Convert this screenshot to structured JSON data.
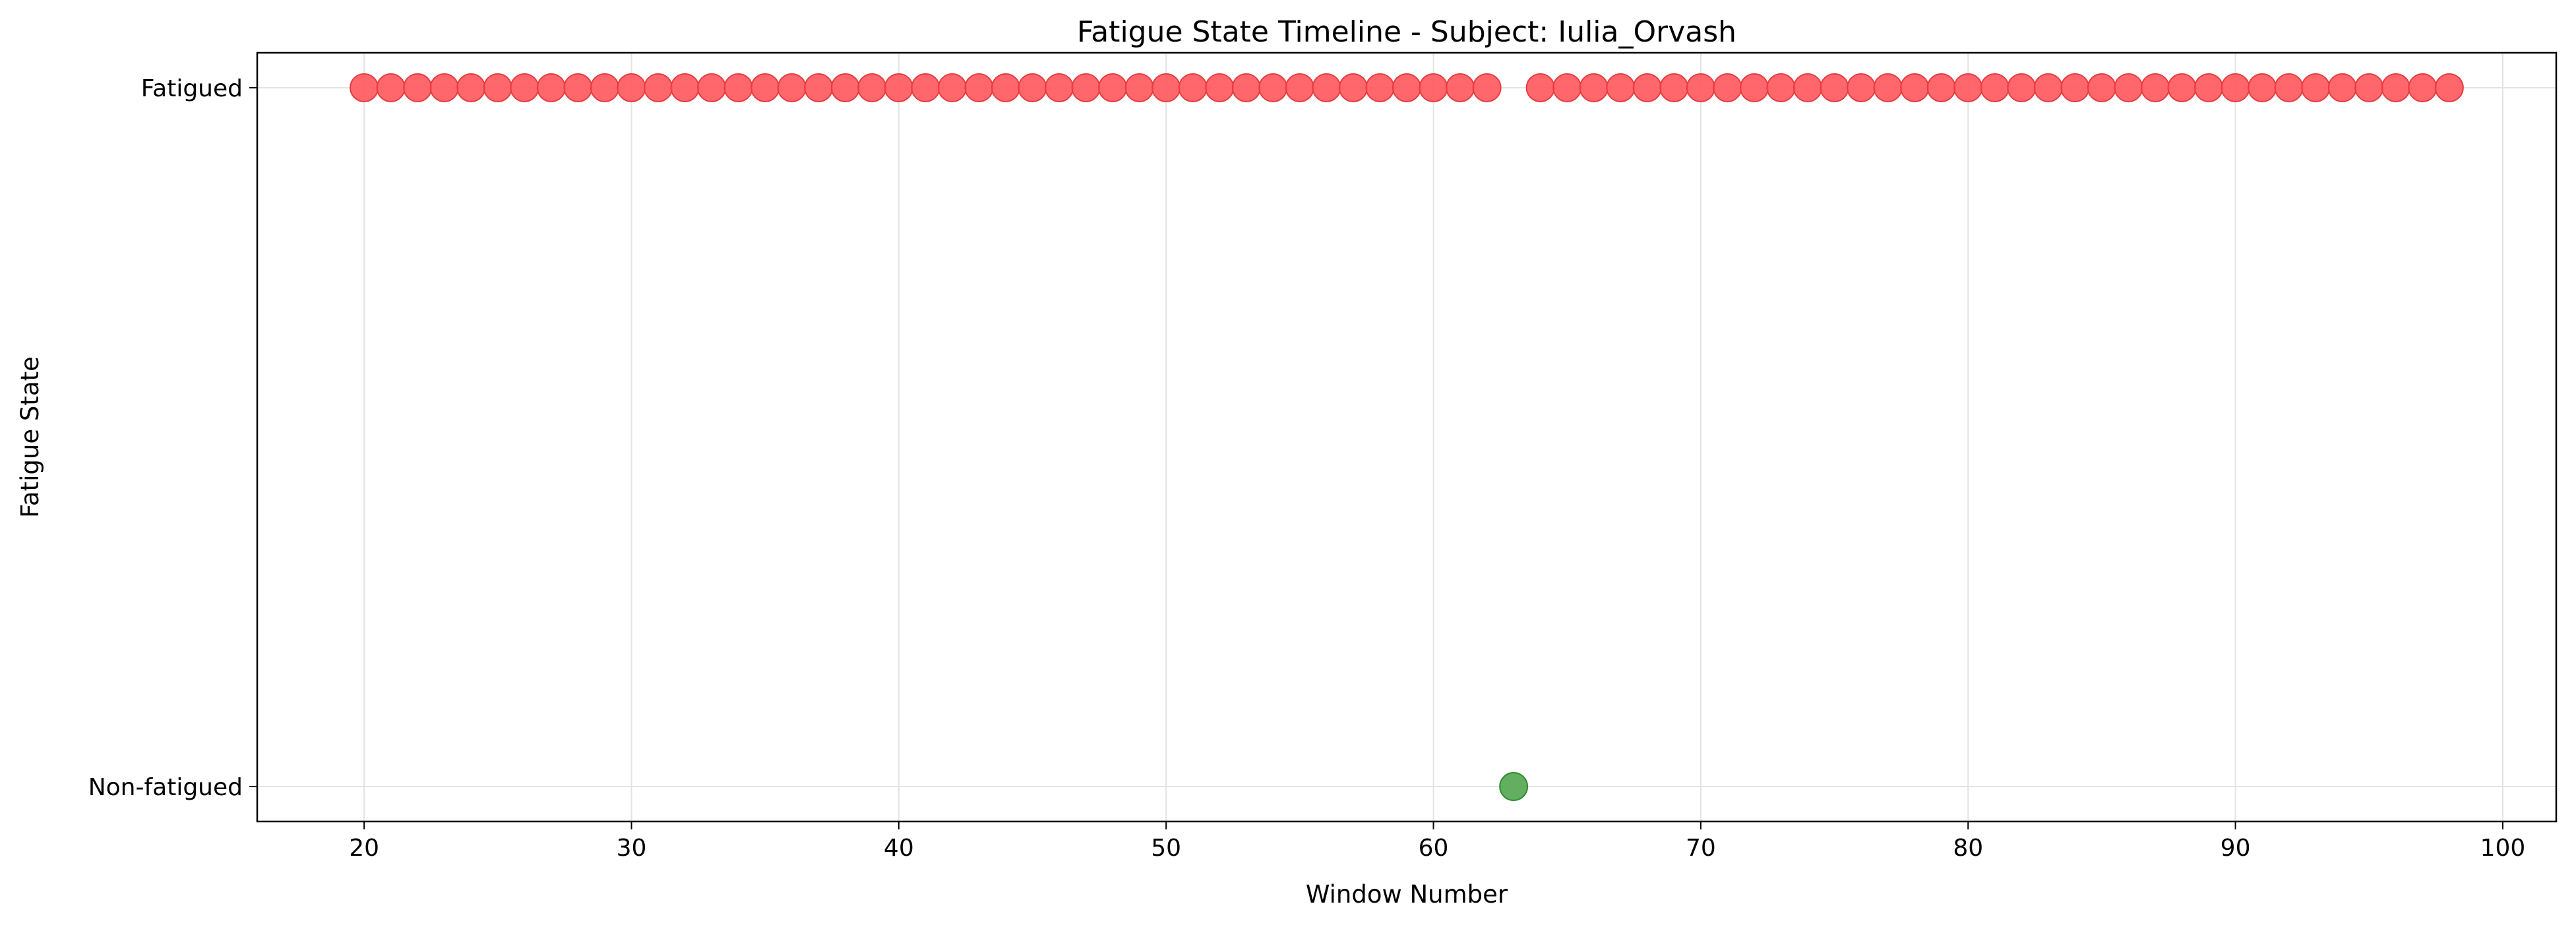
{
  "chart_data": {
    "type": "scatter",
    "title": "Fatigue State Timeline - Subject: Iulia_Orvash",
    "xlabel": "Window Number",
    "ylabel": "Fatigue State",
    "xlim": [
      16,
      102
    ],
    "ylim": [
      -0.05,
      1.05
    ],
    "xticks": [
      20,
      30,
      40,
      50,
      60,
      70,
      80,
      90,
      100
    ],
    "yticks": [
      {
        "value": 0,
        "label": "Non-fatigued"
      },
      {
        "value": 1,
        "label": "Fatigued"
      }
    ],
    "grid": true,
    "legend": "none",
    "colors": {
      "fatigued": "#ff5a5f",
      "non_fatigued": "#56a853",
      "fatigued_edge": "#e63b40",
      "non_fatigued_edge": "#2f8a2f"
    },
    "x": [
      20,
      21,
      22,
      23,
      24,
      25,
      26,
      27,
      28,
      29,
      30,
      31,
      32,
      33,
      34,
      35,
      36,
      37,
      38,
      39,
      40,
      41,
      42,
      43,
      44,
      45,
      46,
      47,
      48,
      49,
      50,
      51,
      52,
      53,
      54,
      55,
      56,
      57,
      58,
      59,
      60,
      61,
      62,
      63,
      64,
      65,
      66,
      67,
      68,
      69,
      70,
      71,
      72,
      73,
      74,
      75,
      76,
      77,
      78,
      79,
      80,
      81,
      82,
      83,
      84,
      85,
      86,
      87,
      88,
      89,
      90,
      91,
      92,
      93,
      94,
      95,
      96,
      97,
      98
    ],
    "y": [
      1,
      1,
      1,
      1,
      1,
      1,
      1,
      1,
      1,
      1,
      1,
      1,
      1,
      1,
      1,
      1,
      1,
      1,
      1,
      1,
      1,
      1,
      1,
      1,
      1,
      1,
      1,
      1,
      1,
      1,
      1,
      1,
      1,
      1,
      1,
      1,
      1,
      1,
      1,
      1,
      1,
      1,
      1,
      0,
      1,
      1,
      1,
      1,
      1,
      1,
      1,
      1,
      1,
      1,
      1,
      1,
      1,
      1,
      1,
      1,
      1,
      1,
      1,
      1,
      1,
      1,
      1,
      1,
      1,
      1,
      1,
      1,
      1,
      1,
      1,
      1,
      1,
      1,
      1
    ]
  }
}
